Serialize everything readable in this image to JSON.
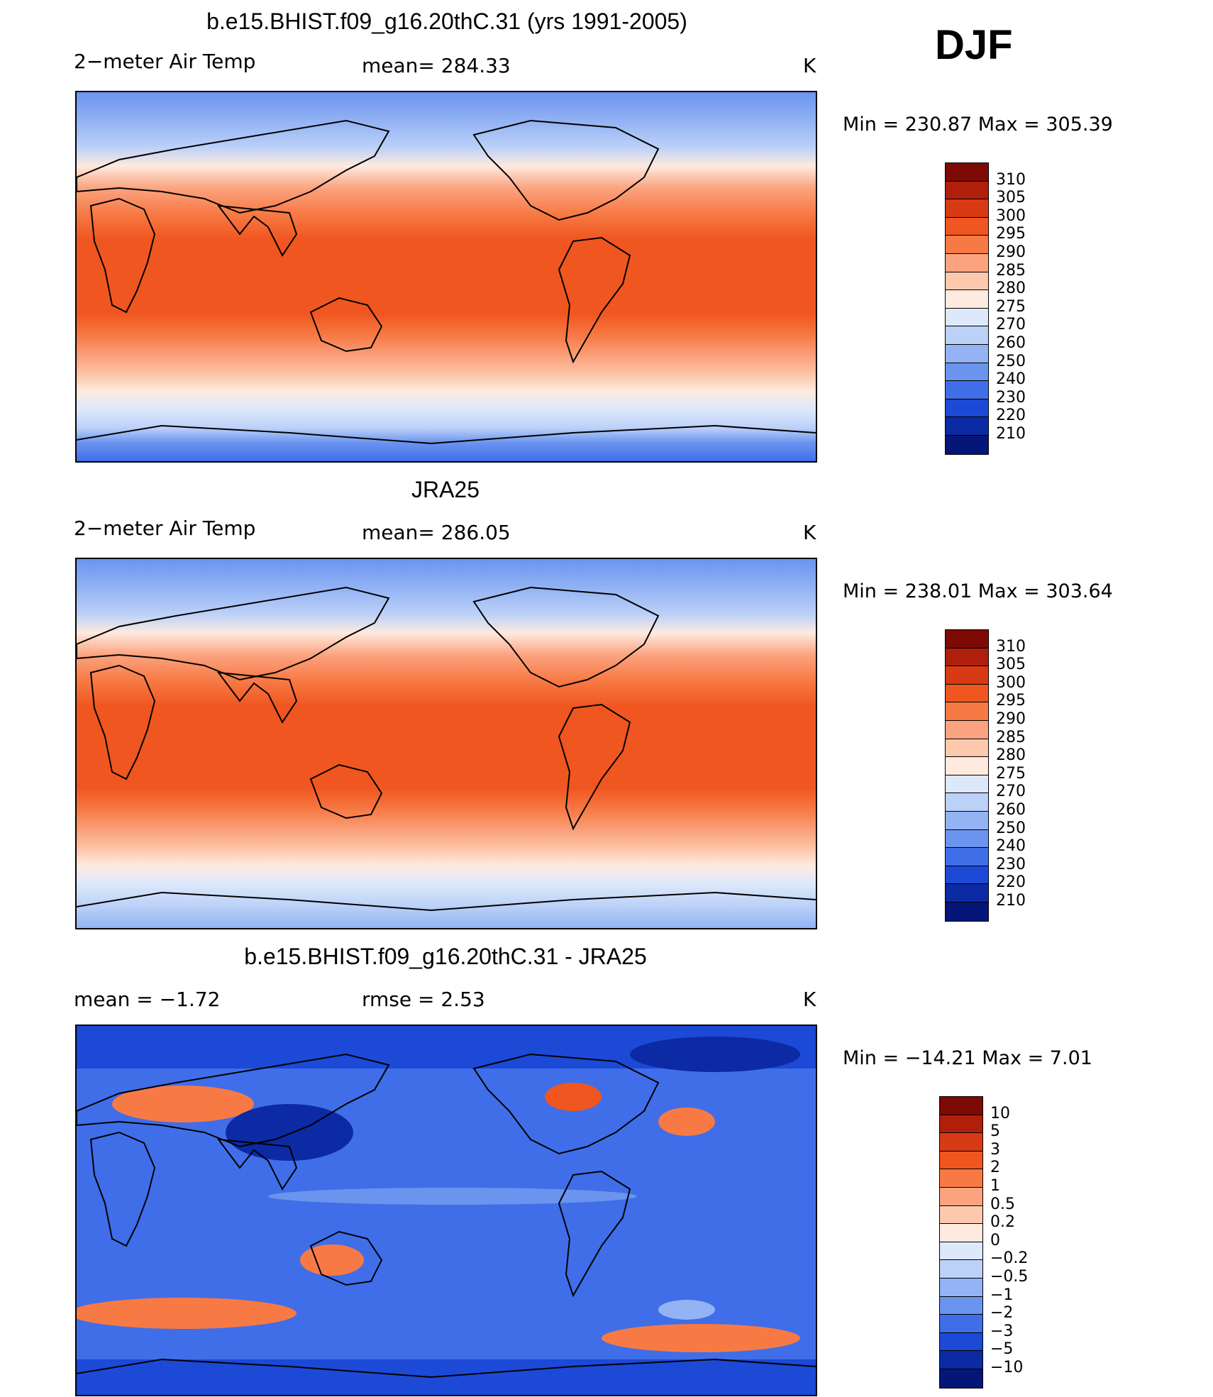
{
  "season": "DJF",
  "chart_data": [
    {
      "type": "heatmap",
      "title": "b.e15.BHIST.f09_g16.20thC.31 (yrs 1991-2005)",
      "left_label": "2−meter Air Temp",
      "center_label": "mean=  284.33",
      "units": "K",
      "minmax": "Min  =  230.87  Max  =  305.39",
      "colorbar": {
        "levels": [
          "310",
          "305",
          "300",
          "295",
          "290",
          "285",
          "280",
          "275",
          "270",
          "260",
          "250",
          "240",
          "230",
          "220",
          "210"
        ],
        "colors": [
          "#7d0a04",
          "#b01f0c",
          "#d83a13",
          "#f0561f",
          "#f77a45",
          "#fba37f",
          "#fdc9ad",
          "#feeadf",
          "#dde9fb",
          "#bcd1f8",
          "#93b3f4",
          "#6b94ef",
          "#3f6ee8",
          "#1c49d6",
          "#0b2aa4",
          "#061578"
        ]
      }
    },
    {
      "type": "heatmap",
      "title": "JRA25",
      "left_label": "2−meter Air Temp",
      "center_label": "mean=  286.05",
      "units": "K",
      "minmax": "Min  =  238.01  Max  =  303.64",
      "colorbar": {
        "levels": [
          "310",
          "305",
          "300",
          "295",
          "290",
          "285",
          "280",
          "275",
          "270",
          "260",
          "250",
          "240",
          "230",
          "220",
          "210"
        ],
        "colors": [
          "#7d0a04",
          "#b01f0c",
          "#d83a13",
          "#f0561f",
          "#f77a45",
          "#fba37f",
          "#fdc9ad",
          "#feeadf",
          "#dde9fb",
          "#bcd1f8",
          "#93b3f4",
          "#6b94ef",
          "#3f6ee8",
          "#1c49d6",
          "#0b2aa4",
          "#061578"
        ]
      }
    },
    {
      "type": "heatmap",
      "title": "b.e15.BHIST.f09_g16.20thC.31 - JRA25",
      "left_label": "mean  =     −1.72",
      "center_label": "rmse  =      2.53",
      "units": "K",
      "minmax": "Min  =  −14.21  Max  =       7.01",
      "colorbar": {
        "levels": [
          "10",
          "5",
          "3",
          "2",
          "1",
          "0.5",
          "0.2",
          "0",
          "−0.2",
          "−0.5",
          "−1",
          "−2",
          "−3",
          "−5",
          "−10"
        ],
        "colors": [
          "#7d0a04",
          "#b01f0c",
          "#d83a13",
          "#f0561f",
          "#f77a45",
          "#fba37f",
          "#fdc9ad",
          "#feeadf",
          "#dde9fb",
          "#bcd1f8",
          "#93b3f4",
          "#6b94ef",
          "#3f6ee8",
          "#1c49d6",
          "#0b2aa4",
          "#061578"
        ]
      }
    }
  ]
}
